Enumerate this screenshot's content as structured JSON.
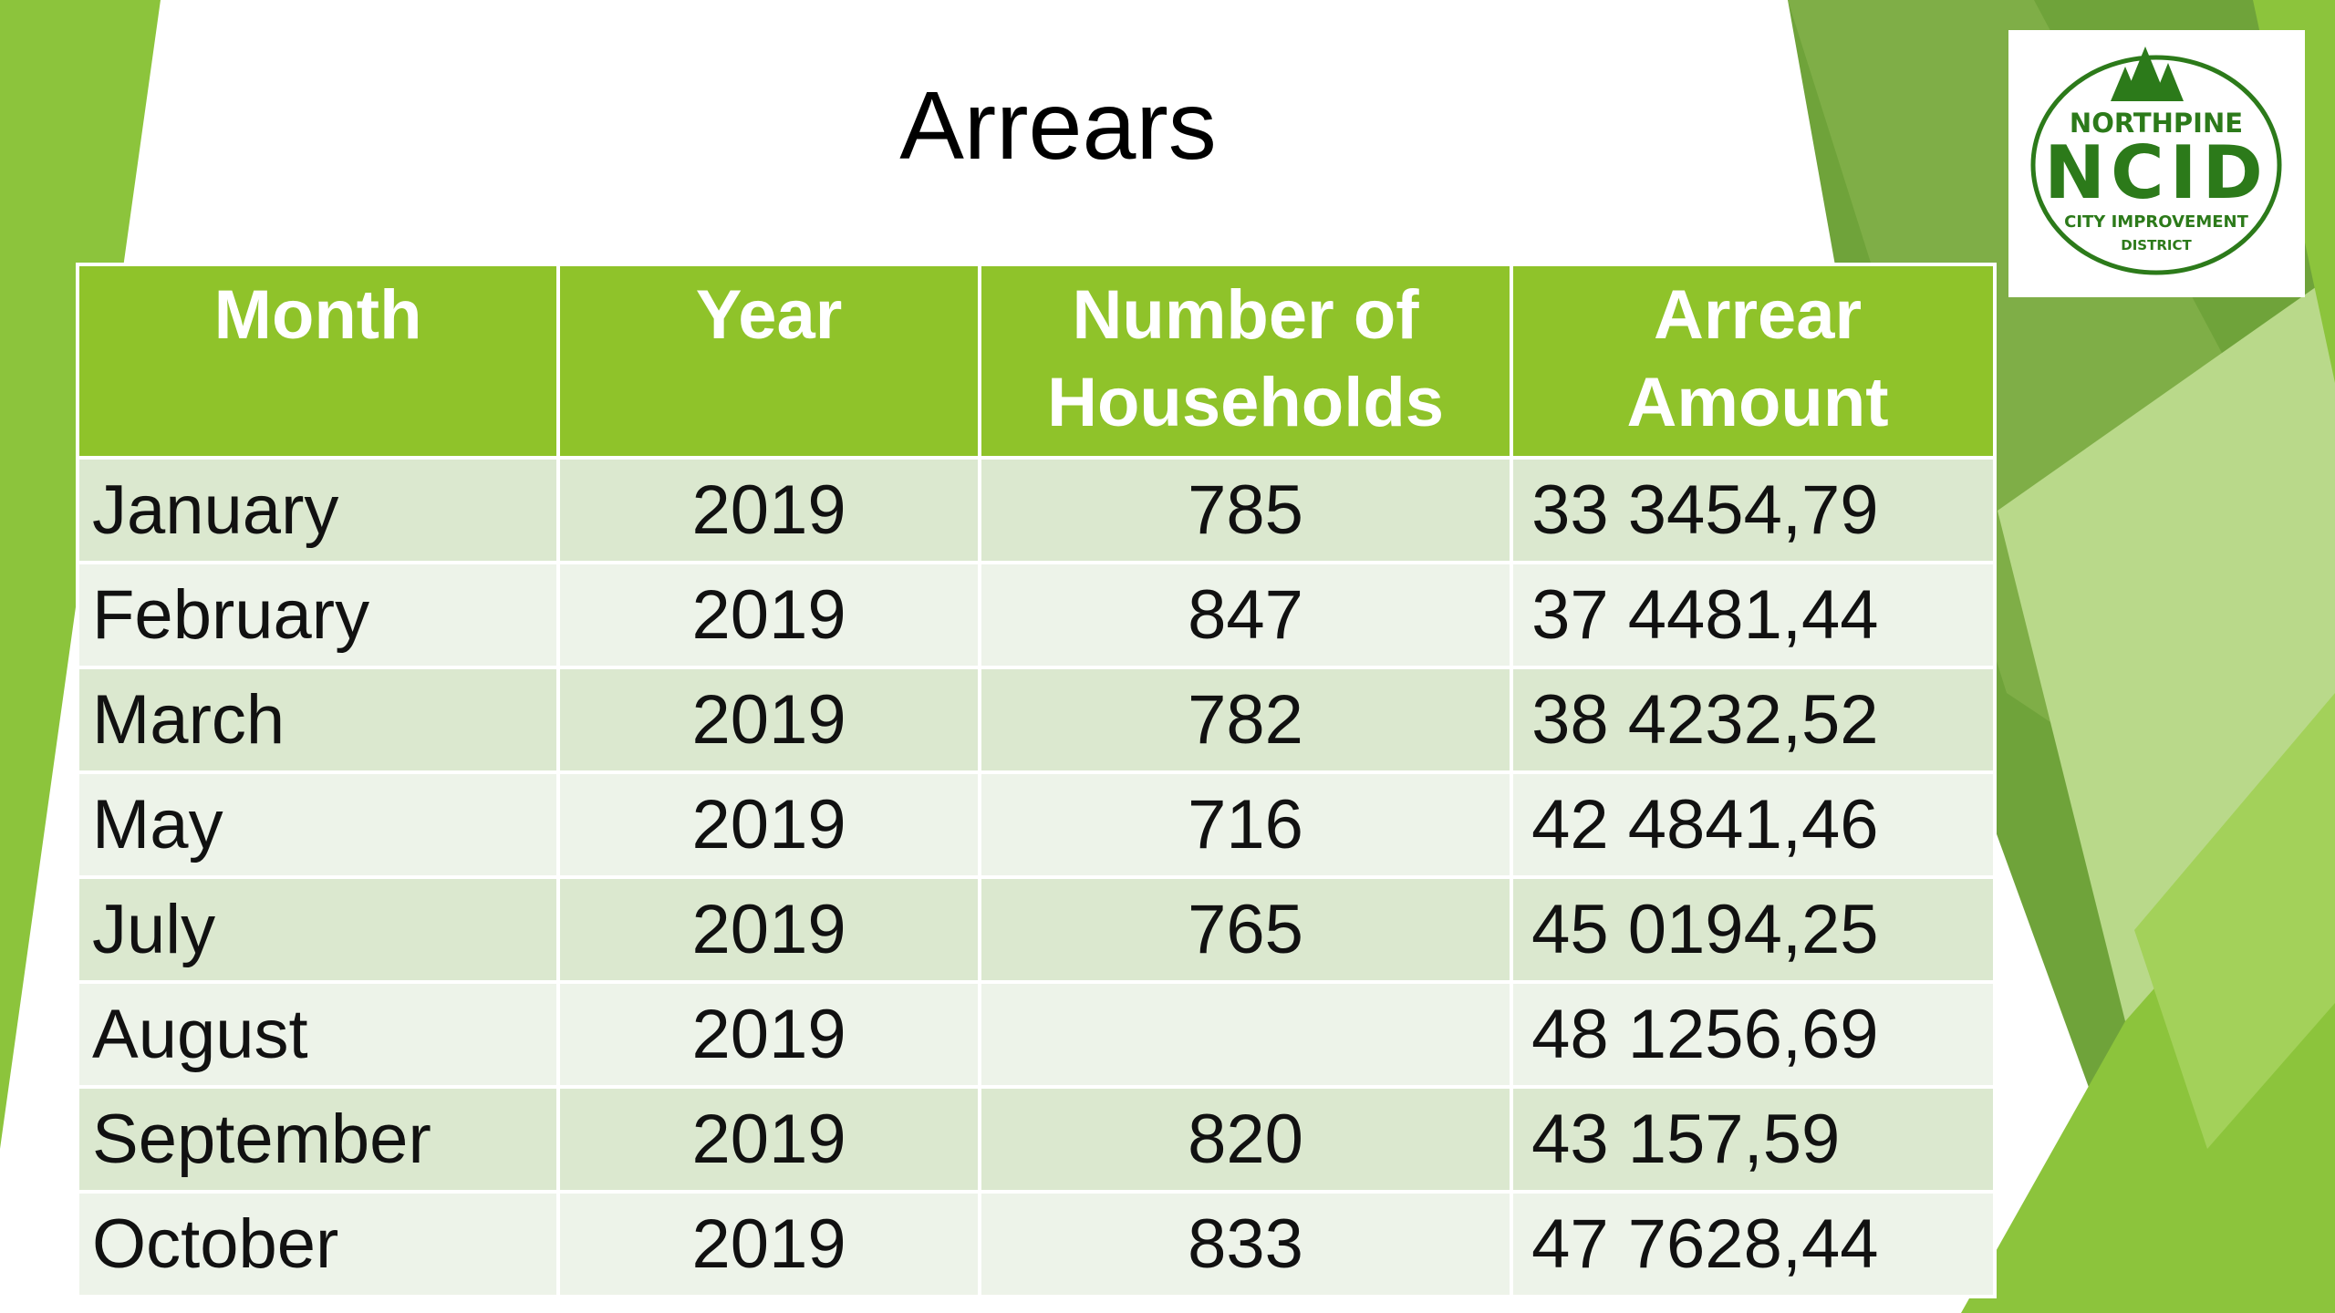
{
  "slide": {
    "title": "Arrears"
  },
  "logo": {
    "top_text": "NORTHPINE",
    "main_text": "NCID",
    "bottom_text_line1": "CITY IMPROVEMENT",
    "bottom_text_line2": "DISTRICT",
    "icon": "pine-trees-icon",
    "color": "#2c7a1a"
  },
  "colors": {
    "header_green": "#8fc32a",
    "row_band_dark": "#dbe8cf",
    "row_band_light": "#edf3e9",
    "accent_green": "#8cc43c"
  },
  "table": {
    "headers": [
      "Month",
      "Year",
      "Number of Households",
      "Arrear Amount"
    ],
    "rows": [
      {
        "month": "January",
        "year": "2019",
        "households": "785",
        "amount": "33 3454,79"
      },
      {
        "month": "February",
        "year": "2019",
        "households": "847",
        "amount": "37 4481,44"
      },
      {
        "month": "March",
        "year": "2019",
        "households": "782",
        "amount": "38 4232,52"
      },
      {
        "month": "May",
        "year": "2019",
        "households": "716",
        "amount": "42 4841,46"
      },
      {
        "month": "July",
        "year": "2019",
        "households": "765",
        "amount": "45 0194,25"
      },
      {
        "month": "August",
        "year": "2019",
        "households": "",
        "amount": "48 1256,69"
      },
      {
        "month": "September",
        "year": "2019",
        "households": "820",
        "amount": "43 157,59"
      },
      {
        "month": "October",
        "year": "2019",
        "households": "833",
        "amount": "47 7628,44"
      }
    ]
  }
}
